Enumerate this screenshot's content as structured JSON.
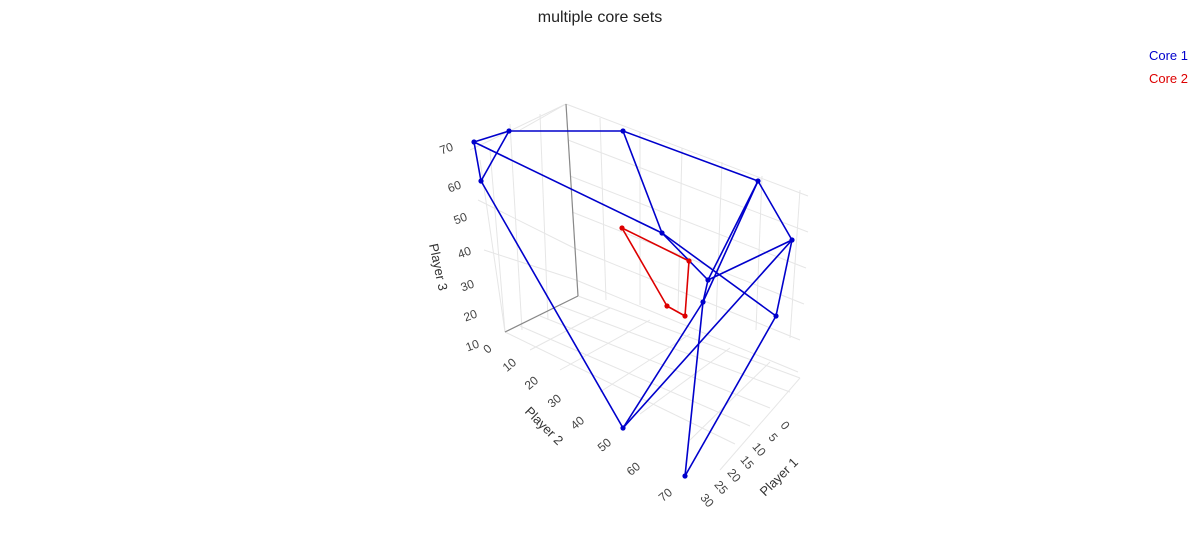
{
  "chart_data": {
    "type": "scatter3d",
    "title": "multiple core sets",
    "axes": {
      "x": {
        "label": "Player 1",
        "ticks": [
          "0",
          "5",
          "10",
          "15",
          "20",
          "25",
          "30"
        ]
      },
      "y": {
        "label": "Player 2",
        "ticks": [
          "0",
          "10",
          "20",
          "30",
          "40",
          "50",
          "60",
          "70"
        ]
      },
      "z": {
        "label": "Player 3",
        "ticks": [
          "10",
          "20",
          "30",
          "40",
          "50",
          "60",
          "70"
        ]
      }
    },
    "legend_position": "top-right",
    "series": [
      {
        "name": "Core 1",
        "color": "#0000cc"
      },
      {
        "name": "Core 2",
        "color": "#dd0000"
      }
    ]
  }
}
